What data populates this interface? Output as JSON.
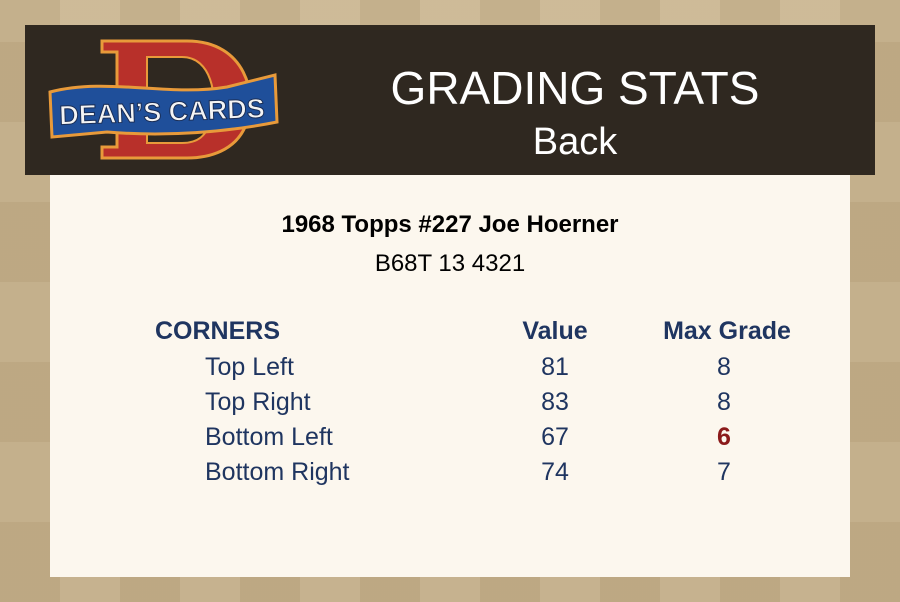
{
  "header": {
    "logo_text": "DEAN'S CARDS",
    "title": "GRADING STATS",
    "subtitle": "Back"
  },
  "card": {
    "name": "1968 Topps #227 Joe Hoerner",
    "code": "B68T 13 4321"
  },
  "table": {
    "headers": [
      "CORNERS",
      "Value",
      "Max Grade"
    ],
    "rows": [
      {
        "label": "Top Left",
        "value": "81",
        "max_grade": "8"
      },
      {
        "label": "Top Right",
        "value": "83",
        "max_grade": "8"
      },
      {
        "label": "Bottom Left",
        "value": "67",
        "max_grade": "6",
        "highlight": true
      },
      {
        "label": "Bottom Right",
        "value": "74",
        "max_grade": "7"
      }
    ]
  },
  "colors": {
    "header_bg": "#2f2820",
    "text": "#1f3560",
    "highlight": "#8b1a1a",
    "panel": "#fcf7ee"
  }
}
